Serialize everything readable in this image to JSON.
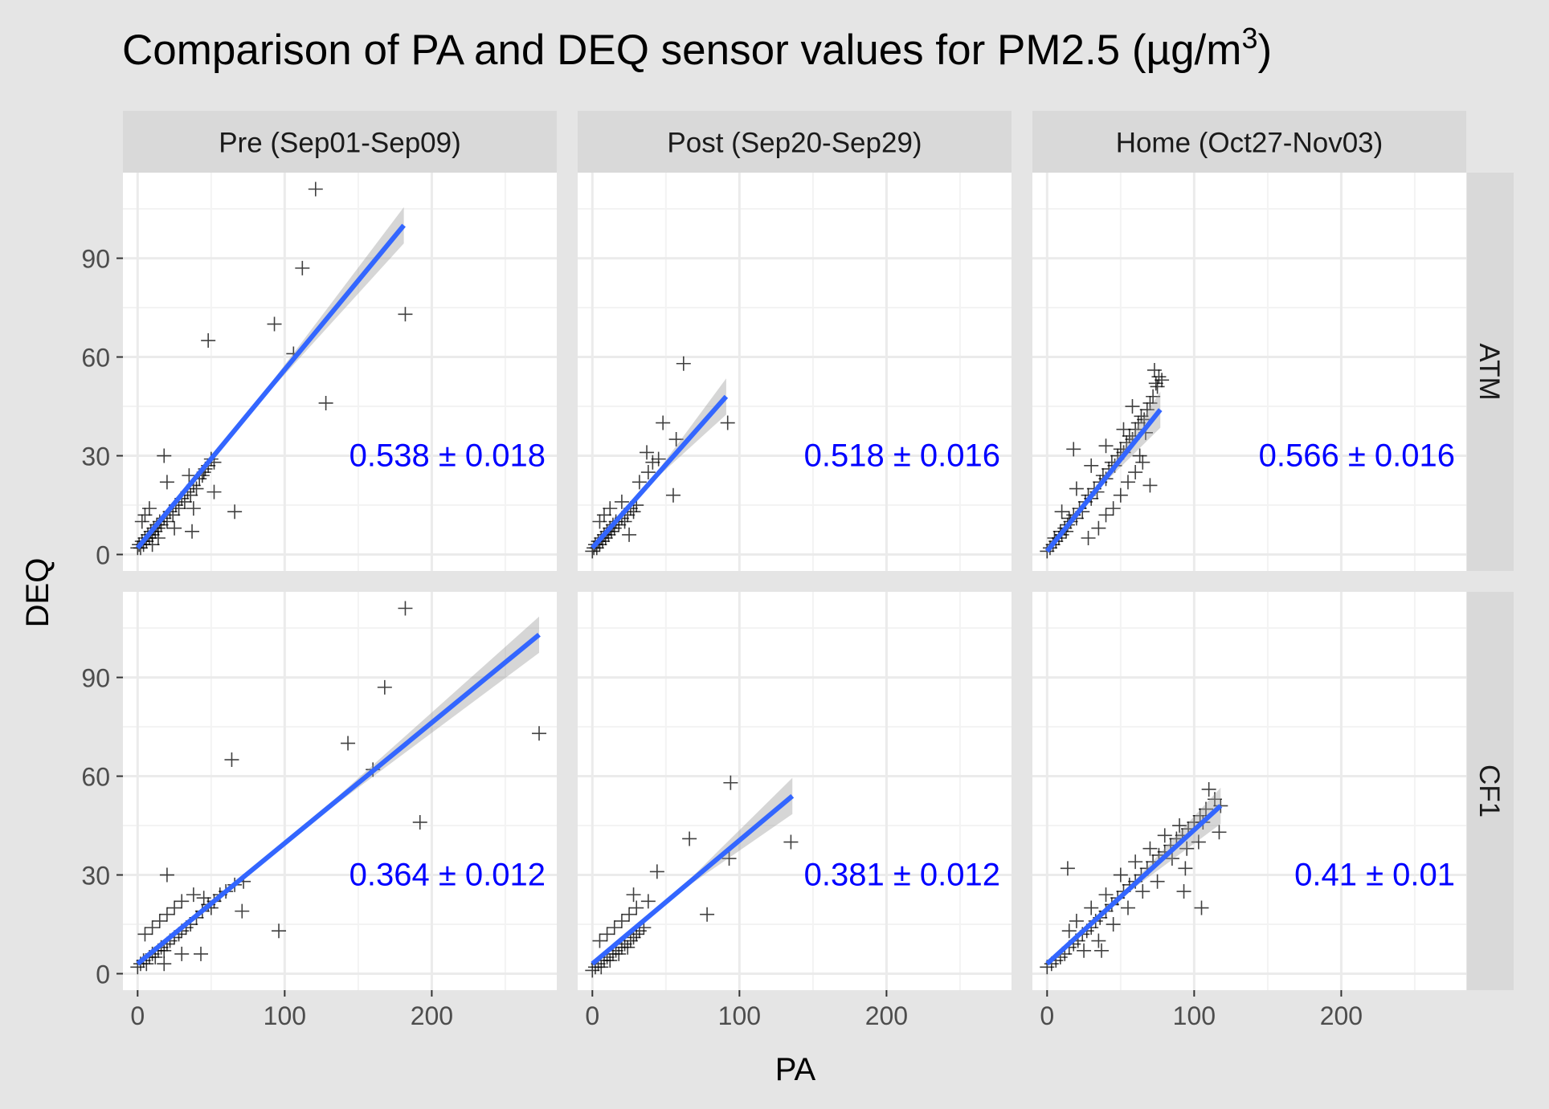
{
  "title_main": "Comparison of PA and DEQ sensor values for PM2.5 (µg/m",
  "title_sup": "3",
  "title_close": ")",
  "xlabel": "PA",
  "ylabel": "DEQ",
  "colors": {
    "background": "#e5e5e5",
    "panel": "#ffffff",
    "strip": "#d9d9d9",
    "grid": "#ebebeb",
    "point": "#000000",
    "fit_line": "#3366ff",
    "ribbon": "#999999",
    "annotation": "#0000ff",
    "text": "#000000",
    "tick_label": "#4d4d4d"
  },
  "chart_data": {
    "type": "scatter",
    "marker": "plus",
    "title": "Comparison of PA and DEQ sensor values for PM2.5 (µg/m³)",
    "xlabel": "PA",
    "ylabel": "DEQ",
    "xlim": [
      -10,
      285
    ],
    "ylim": [
      -5,
      116
    ],
    "x_ticks": [
      0,
      100,
      200
    ],
    "y_ticks": [
      0,
      30,
      60,
      90
    ],
    "grid": true,
    "columns": [
      "Pre (Sep01-Sep09)",
      "Post (Sep20-Sep29)",
      "Home (Oct27-Nov03)"
    ],
    "rows": [
      "ATM",
      "CF1"
    ],
    "panels": [
      {
        "row": "ATM",
        "column": "Pre (Sep01-Sep09)",
        "slope_label": "0.538 ± 0.018",
        "fit": {
          "x": [
            0,
            181
          ],
          "y": [
            2,
            100
          ]
        },
        "points": [
          [
            0,
            2
          ],
          [
            1,
            3
          ],
          [
            2,
            2
          ],
          [
            3,
            4
          ],
          [
            4,
            3
          ],
          [
            5,
            5
          ],
          [
            6,
            4
          ],
          [
            7,
            6
          ],
          [
            8,
            5
          ],
          [
            9,
            7
          ],
          [
            10,
            6
          ],
          [
            11,
            8
          ],
          [
            12,
            7
          ],
          [
            13,
            9
          ],
          [
            14,
            8
          ],
          [
            15,
            10
          ],
          [
            16,
            9
          ],
          [
            18,
            11
          ],
          [
            20,
            10
          ],
          [
            22,
            13
          ],
          [
            24,
            12
          ],
          [
            26,
            15
          ],
          [
            28,
            14
          ],
          [
            30,
            17
          ],
          [
            32,
            16
          ],
          [
            34,
            19
          ],
          [
            36,
            18
          ],
          [
            38,
            21
          ],
          [
            40,
            20
          ],
          [
            42,
            23
          ],
          [
            44,
            24
          ],
          [
            46,
            26
          ],
          [
            48,
            27
          ],
          [
            50,
            29
          ],
          [
            52,
            28
          ],
          [
            5,
            12
          ],
          [
            8,
            14
          ],
          [
            3,
            10
          ],
          [
            10,
            3
          ],
          [
            14,
            5
          ],
          [
            20,
            22
          ],
          [
            25,
            8
          ],
          [
            35,
            24
          ],
          [
            38,
            14
          ],
          [
            45,
            25
          ],
          [
            18,
            30
          ],
          [
            48,
            65
          ],
          [
            93,
            70
          ],
          [
            106,
            61
          ],
          [
            112,
            87
          ],
          [
            121,
            111
          ],
          [
            128,
            46
          ],
          [
            182,
            73
          ],
          [
            66,
            13
          ],
          [
            52,
            19
          ],
          [
            37,
            7
          ]
        ]
      },
      {
        "row": "ATM",
        "column": "Post (Sep20-Sep29)",
        "slope_label": "0.518 ± 0.016",
        "fit": {
          "x": [
            0,
            91
          ],
          "y": [
            2,
            48
          ]
        },
        "points": [
          [
            0,
            1
          ],
          [
            1,
            2
          ],
          [
            2,
            3
          ],
          [
            3,
            2
          ],
          [
            4,
            4
          ],
          [
            5,
            3
          ],
          [
            6,
            5
          ],
          [
            7,
            4
          ],
          [
            8,
            6
          ],
          [
            9,
            5
          ],
          [
            10,
            7
          ],
          [
            11,
            6
          ],
          [
            12,
            8
          ],
          [
            13,
            7
          ],
          [
            14,
            9
          ],
          [
            15,
            8
          ],
          [
            16,
            10
          ],
          [
            18,
            9
          ],
          [
            20,
            11
          ],
          [
            22,
            10
          ],
          [
            24,
            12
          ],
          [
            26,
            14
          ],
          [
            28,
            13
          ],
          [
            30,
            15
          ],
          [
            5,
            10
          ],
          [
            8,
            12
          ],
          [
            12,
            14
          ],
          [
            20,
            16
          ],
          [
            25,
            6
          ],
          [
            32,
            22
          ],
          [
            38,
            25
          ],
          [
            45,
            29
          ],
          [
            37,
            31
          ],
          [
            48,
            40
          ],
          [
            57,
            35
          ],
          [
            62,
            58
          ],
          [
            92,
            40
          ],
          [
            55,
            18
          ],
          [
            41,
            28
          ]
        ]
      },
      {
        "row": "ATM",
        "column": "Home (Oct27-Nov03)",
        "slope_label": "0.566 ± 0.016",
        "fit": {
          "x": [
            0,
            77
          ],
          "y": [
            1,
            44
          ]
        },
        "points": [
          [
            0,
            1
          ],
          [
            2,
            2
          ],
          [
            4,
            3
          ],
          [
            5,
            5
          ],
          [
            6,
            4
          ],
          [
            8,
            5
          ],
          [
            9,
            7
          ],
          [
            10,
            6
          ],
          [
            12,
            8
          ],
          [
            13,
            7
          ],
          [
            14,
            9
          ],
          [
            15,
            11
          ],
          [
            16,
            10
          ],
          [
            18,
            12
          ],
          [
            20,
            11
          ],
          [
            22,
            14
          ],
          [
            24,
            13
          ],
          [
            26,
            16
          ],
          [
            28,
            18
          ],
          [
            30,
            17
          ],
          [
            32,
            20
          ],
          [
            34,
            19
          ],
          [
            36,
            22
          ],
          [
            38,
            24
          ],
          [
            40,
            23
          ],
          [
            42,
            26
          ],
          [
            44,
            28
          ],
          [
            46,
            27
          ],
          [
            48,
            30
          ],
          [
            50,
            32
          ],
          [
            52,
            31
          ],
          [
            54,
            34
          ],
          [
            56,
            36
          ],
          [
            58,
            35
          ],
          [
            60,
            38
          ],
          [
            62,
            40
          ],
          [
            64,
            42
          ],
          [
            66,
            41
          ],
          [
            68,
            44
          ],
          [
            70,
            46
          ],
          [
            72,
            48
          ],
          [
            74,
            52
          ],
          [
            76,
            54
          ],
          [
            78,
            53
          ],
          [
            73,
            56
          ],
          [
            75,
            51
          ],
          [
            28,
            5
          ],
          [
            35,
            8
          ],
          [
            40,
            12
          ],
          [
            45,
            14
          ],
          [
            50,
            18
          ],
          [
            55,
            22
          ],
          [
            60,
            25
          ],
          [
            65,
            28
          ],
          [
            70,
            21
          ],
          [
            18,
            32
          ],
          [
            10,
            13
          ],
          [
            20,
            20
          ],
          [
            30,
            27
          ],
          [
            40,
            33
          ],
          [
            52,
            38
          ],
          [
            58,
            45
          ],
          [
            63,
            30
          ],
          [
            67,
            37
          ]
        ]
      },
      {
        "row": "CF1",
        "column": "Pre (Sep01-Sep09)",
        "slope_label": "0.364 ± 0.012",
        "fit": {
          "x": [
            0,
            273
          ],
          "y": [
            3,
            103
          ]
        },
        "points": [
          [
            0,
            2
          ],
          [
            2,
            3
          ],
          [
            4,
            4
          ],
          [
            6,
            3
          ],
          [
            8,
            5
          ],
          [
            10,
            6
          ],
          [
            12,
            5
          ],
          [
            14,
            7
          ],
          [
            16,
            8
          ],
          [
            18,
            7
          ],
          [
            20,
            9
          ],
          [
            22,
            10
          ],
          [
            25,
            11
          ],
          [
            28,
            12
          ],
          [
            30,
            13
          ],
          [
            33,
            14
          ],
          [
            36,
            15
          ],
          [
            40,
            17
          ],
          [
            44,
            19
          ],
          [
            48,
            21
          ],
          [
            52,
            22
          ],
          [
            56,
            24
          ],
          [
            60,
            25
          ],
          [
            66,
            27
          ],
          [
            72,
            28
          ],
          [
            5,
            12
          ],
          [
            10,
            14
          ],
          [
            15,
            16
          ],
          [
            20,
            18
          ],
          [
            25,
            20
          ],
          [
            30,
            22
          ],
          [
            38,
            24
          ],
          [
            45,
            23
          ],
          [
            50,
            20
          ],
          [
            20,
            30
          ],
          [
            18,
            3
          ],
          [
            30,
            6
          ],
          [
            43,
            6
          ],
          [
            64,
            65
          ],
          [
            71,
            19
          ],
          [
            96,
            13
          ],
          [
            143,
            70
          ],
          [
            160,
            62
          ],
          [
            168,
            87
          ],
          [
            182,
            111
          ],
          [
            192,
            46
          ],
          [
            273,
            73
          ]
        ]
      },
      {
        "row": "CF1",
        "column": "Post (Sep20-Sep29)",
        "slope_label": "0.381 ± 0.012",
        "fit": {
          "x": [
            0,
            136
          ],
          "y": [
            3,
            54
          ]
        },
        "points": [
          [
            0,
            1
          ],
          [
            2,
            2
          ],
          [
            4,
            3
          ],
          [
            6,
            2
          ],
          [
            8,
            4
          ],
          [
            10,
            5
          ],
          [
            12,
            4
          ],
          [
            14,
            6
          ],
          [
            16,
            7
          ],
          [
            18,
            6
          ],
          [
            20,
            8
          ],
          [
            22,
            9
          ],
          [
            24,
            8
          ],
          [
            26,
            10
          ],
          [
            28,
            11
          ],
          [
            30,
            12
          ],
          [
            32,
            13
          ],
          [
            35,
            14
          ],
          [
            5,
            10
          ],
          [
            10,
            12
          ],
          [
            15,
            14
          ],
          [
            20,
            16
          ],
          [
            25,
            18
          ],
          [
            30,
            20
          ],
          [
            38,
            22
          ],
          [
            28,
            24
          ],
          [
            44,
            31
          ],
          [
            66,
            41
          ],
          [
            78,
            18
          ],
          [
            93,
            35
          ],
          [
            94,
            58
          ],
          [
            135,
            40
          ]
        ]
      },
      {
        "row": "CF1",
        "column": "Home (Oct27-Nov03)",
        "slope_label": "0.41 ± 0.01",
        "fit": {
          "x": [
            0,
            118
          ],
          "y": [
            3,
            51
          ]
        },
        "points": [
          [
            0,
            2
          ],
          [
            3,
            3
          ],
          [
            6,
            4
          ],
          [
            9,
            5
          ],
          [
            12,
            6
          ],
          [
            15,
            8
          ],
          [
            18,
            9
          ],
          [
            21,
            10
          ],
          [
            24,
            12
          ],
          [
            27,
            13
          ],
          [
            30,
            14
          ],
          [
            33,
            16
          ],
          [
            36,
            17
          ],
          [
            40,
            19
          ],
          [
            44,
            21
          ],
          [
            48,
            23
          ],
          [
            52,
            25
          ],
          [
            56,
            27
          ],
          [
            60,
            28
          ],
          [
            64,
            30
          ],
          [
            68,
            32
          ],
          [
            72,
            34
          ],
          [
            76,
            36
          ],
          [
            80,
            37
          ],
          [
            84,
            39
          ],
          [
            88,
            41
          ],
          [
            92,
            42
          ],
          [
            96,
            44
          ],
          [
            100,
            46
          ],
          [
            104,
            48
          ],
          [
            108,
            50
          ],
          [
            110,
            56
          ],
          [
            114,
            53
          ],
          [
            118,
            51
          ],
          [
            117,
            43
          ],
          [
            106,
            46
          ],
          [
            90,
            45
          ],
          [
            85,
            35
          ],
          [
            95,
            38
          ],
          [
            75,
            28
          ],
          [
            65,
            25
          ],
          [
            55,
            20
          ],
          [
            45,
            15
          ],
          [
            35,
            10
          ],
          [
            25,
            7
          ],
          [
            15,
            13
          ],
          [
            20,
            16
          ],
          [
            30,
            20
          ],
          [
            40,
            24
          ],
          [
            50,
            30
          ],
          [
            60,
            34
          ],
          [
            70,
            38
          ],
          [
            80,
            42
          ],
          [
            14,
            32
          ],
          [
            94,
            32
          ],
          [
            103,
            40
          ],
          [
            93,
            25
          ],
          [
            37,
            7
          ],
          [
            105,
            20
          ]
        ]
      }
    ]
  }
}
